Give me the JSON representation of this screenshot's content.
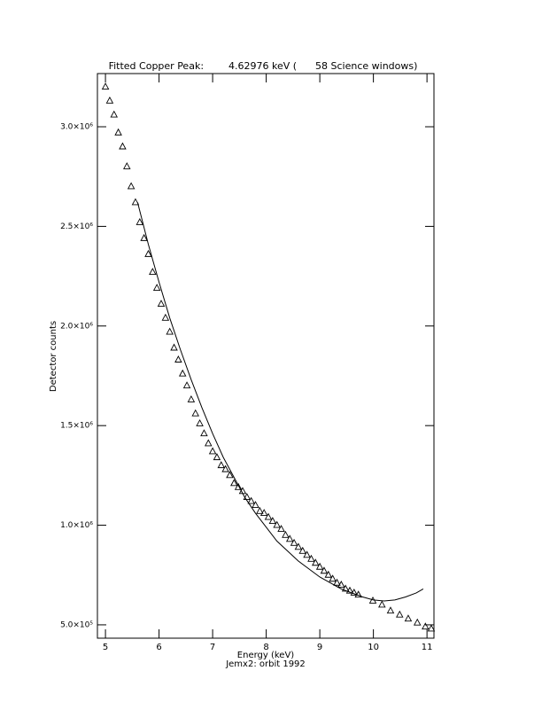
{
  "chart_data": {
    "type": "scatter",
    "title": "Fitted Copper Peak:        4.62976 keV (      58 Science windows)",
    "xlabel": "Energy (keV)",
    "subtitle": "Jemx2: orbit 1992",
    "ylabel": "Detector counts",
    "xlim": [
      4.85,
      11.13
    ],
    "xticks": [
      5,
      6,
      7,
      8,
      9,
      10,
      11
    ],
    "ylim": [
      433000,
      3267000
    ],
    "yticks": [
      {
        "value": 500000,
        "label": "5.0×10⁵"
      },
      {
        "value": 1000000,
        "label": "1.0×10⁶"
      },
      {
        "value": 1500000,
        "label": "1.5×10⁶"
      },
      {
        "value": 2000000,
        "label": "2.0×10⁶"
      },
      {
        "value": 2500000,
        "label": "2.5×10⁶"
      },
      {
        "value": 3000000,
        "label": "3.0×10⁶"
      }
    ],
    "series": [
      {
        "style": "triangle",
        "color": "#000000",
        "x": [
          5.0,
          5.08,
          5.16,
          5.24,
          5.32,
          5.4,
          5.48,
          5.56,
          5.64,
          5.72,
          5.8,
          5.88,
          5.96,
          6.04,
          6.12,
          6.2,
          6.28,
          6.36,
          6.44,
          6.52,
          6.6,
          6.68,
          6.76,
          6.84,
          6.92,
          7.0,
          7.08,
          7.16,
          7.24,
          7.32,
          7.4,
          7.48,
          7.56,
          7.64,
          7.72,
          7.8,
          7.88,
          7.96,
          8.04,
          8.12,
          8.2,
          8.28,
          8.36,
          8.44,
          8.52,
          8.6,
          8.68,
          8.76,
          8.84,
          8.92,
          9.0,
          9.08,
          9.16,
          9.24,
          9.32,
          9.4,
          9.48,
          9.56,
          9.64,
          9.72,
          9.99,
          10.16,
          10.32,
          10.49,
          10.65,
          10.82,
          10.97,
          11.08
        ],
        "values": [
          3200000,
          3130000,
          3060000,
          2970000,
          2900000,
          2800000,
          2700000,
          2620000,
          2520000,
          2440000,
          2360000,
          2270000,
          2190000,
          2110000,
          2040000,
          1970000,
          1890000,
          1830000,
          1760000,
          1700000,
          1630000,
          1560000,
          1510000,
          1460000,
          1410000,
          1370000,
          1340000,
          1300000,
          1280000,
          1250000,
          1210000,
          1190000,
          1170000,
          1140000,
          1120000,
          1100000,
          1070000,
          1060000,
          1040000,
          1020000,
          1000000,
          980000,
          950000,
          930000,
          910000,
          890000,
          870000,
          850000,
          830000,
          810000,
          790000,
          770000,
          750000,
          730000,
          710000,
          700000,
          680000,
          670000,
          660000,
          650000,
          620000,
          600000,
          570000,
          550000,
          530000,
          510000,
          490000,
          480000
        ]
      },
      {
        "style": "line",
        "color": "#000000",
        "x": [
          5.6,
          5.8,
          6.0,
          6.2,
          6.4,
          6.6,
          6.8,
          7.0,
          7.2,
          7.4,
          7.6,
          7.8,
          8.0,
          8.2,
          8.4,
          8.6,
          8.8,
          9.0,
          9.2,
          9.4,
          9.6,
          9.8,
          10.0,
          10.2,
          10.4,
          10.6,
          10.8,
          10.93
        ],
        "values": [
          2620000,
          2410000,
          2220000,
          2040000,
          1880000,
          1730000,
          1590000,
          1460000,
          1340000,
          1240000,
          1140000,
          1060000,
          990000,
          920000,
          870000,
          820000,
          780000,
          740000,
          710000,
          680000,
          660000,
          640000,
          625000,
          620000,
          625000,
          640000,
          660000,
          680000
        ]
      }
    ]
  }
}
